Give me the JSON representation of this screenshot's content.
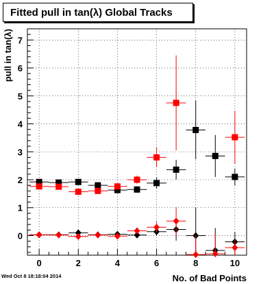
{
  "title": "Fitted pull in tan(λ)  Global Tracks",
  "timestamp": "Wed Oct  8 18:18:04 2014",
  "colors": {
    "black": "#000000",
    "red": "#ff0000",
    "background": "#ffffff"
  },
  "chart_data": {
    "type": "scatter",
    "title": "Fitted pull in tan(λ)  Global Tracks",
    "xlabel": "No. of Bad Points",
    "ylabel": "pull in tan(λ)",
    "xlim": [
      -0.6,
      10.6
    ],
    "ylim": [
      -0.7,
      7.4
    ],
    "xticks": [
      0,
      2,
      4,
      6,
      8,
      10
    ],
    "yticks": [
      0,
      1,
      2,
      3,
      4,
      5,
      6,
      7
    ],
    "grid": true,
    "legend": "none",
    "series": [
      {
        "color": "#000000",
        "marker": "square",
        "x": [
          0,
          1,
          2,
          3,
          4,
          5,
          6,
          7,
          8,
          9,
          10
        ],
        "y": [
          1.92,
          1.9,
          1.92,
          1.8,
          1.63,
          1.65,
          1.88,
          2.36,
          3.78,
          2.85,
          2.1
        ],
        "yerr": [
          0.03,
          0.03,
          0.04,
          0.05,
          0.06,
          0.12,
          0.2,
          0.35,
          1.05,
          0.75,
          0.3
        ]
      },
      {
        "color": "#ff0000",
        "marker": "square",
        "x": [
          0,
          1,
          2,
          3,
          4,
          5,
          6,
          7,
          8,
          9,
          10
        ],
        "y": [
          1.76,
          1.75,
          1.57,
          1.6,
          1.76,
          2.0,
          2.8,
          4.75,
          null,
          null,
          3.52
        ],
        "yerr": [
          0.04,
          0.04,
          0.06,
          0.07,
          0.08,
          0.14,
          0.35,
          1.7,
          null,
          null,
          0.95
        ]
      },
      {
        "color": "#000000",
        "marker": "diamond",
        "x": [
          0,
          1,
          2,
          3,
          4,
          5,
          6,
          7,
          8,
          9,
          10
        ],
        "y": [
          0.03,
          0.03,
          0.1,
          0.03,
          0.05,
          0.02,
          0.14,
          0.22,
          0.0,
          -0.53,
          -0.22
        ],
        "yerr": [
          0.02,
          0.02,
          0.03,
          0.04,
          0.05,
          0.08,
          0.15,
          0.4,
          1.0,
          0.8,
          0.35
        ]
      },
      {
        "color": "#ff0000",
        "marker": "diamond",
        "x": [
          0,
          1,
          2,
          3,
          4,
          5,
          6,
          7,
          8,
          9,
          10
        ],
        "y": [
          0.03,
          0.02,
          -0.03,
          0.02,
          -0.02,
          0.17,
          0.3,
          0.52,
          -0.68,
          -0.65,
          -0.43
        ],
        "yerr": [
          0.02,
          0.02,
          0.03,
          0.04,
          0.05,
          0.1,
          0.2,
          0.5,
          0.7,
          0.7,
          0.3
        ]
      }
    ]
  }
}
